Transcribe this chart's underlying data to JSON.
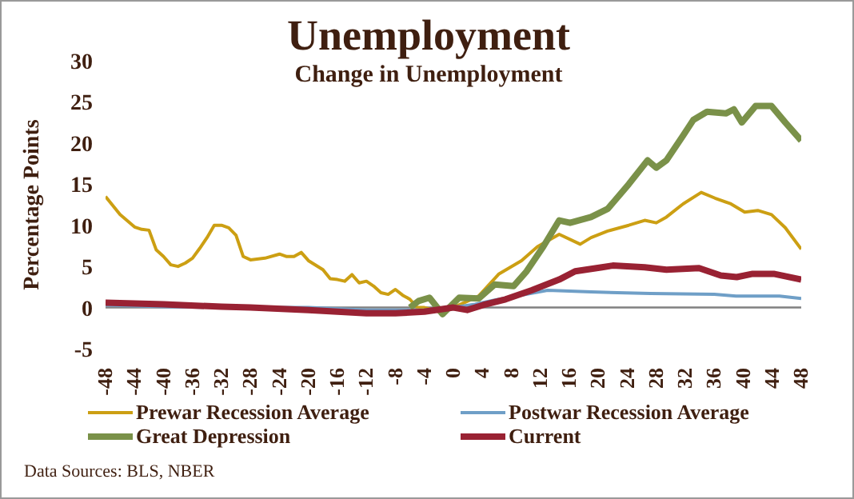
{
  "chart_data": {
    "type": "line",
    "title": "Unemployment",
    "subtitle": "Change in Unemployment",
    "ylabel": "Percentage Points",
    "xlim": [
      -48,
      48
    ],
    "xticks": [
      -48,
      -44,
      -40,
      -36,
      -32,
      -28,
      -24,
      -20,
      -16,
      -12,
      -8,
      -4,
      0,
      4,
      8,
      12,
      16,
      20,
      24,
      28,
      32,
      36,
      40,
      44,
      48
    ],
    "ylim": [
      -5,
      30
    ],
    "yticks": [
      -5,
      0,
      5,
      10,
      15,
      20,
      25,
      30
    ],
    "grid": false,
    "legend": "bottom",
    "marker": "none",
    "line_style": "solid",
    "ref_lines": [
      {
        "axis": "y",
        "value": 0,
        "color": "#808080"
      }
    ],
    "annotations": [
      "Data Sources: BLS, NBER"
    ],
    "series": [
      {
        "name": "Prewar Recession Average",
        "color": "#cc9f13",
        "x": [
          -48,
          -46,
          -44,
          -43,
          -42,
          -41,
          -40,
          -39,
          -38,
          -37,
          -36,
          -35,
          -34,
          -33,
          -32,
          -31,
          -30,
          -29,
          -28,
          -26,
          -24,
          -23,
          -22,
          -21,
          -20,
          -18,
          -17,
          -16,
          -15,
          -14,
          -13,
          -12,
          -11,
          -10,
          -9,
          -8,
          -7,
          -6,
          -5,
          -4,
          -2,
          0,
          2,
          3.5,
          6.3,
          9.4,
          11.6,
          14.6,
          17.5,
          19,
          21.3,
          24.2,
          26.4,
          28,
          29.4,
          31.7,
          34.2,
          36.1,
          38.3,
          40.2,
          42,
          43.9,
          45.8,
          48
        ],
        "values": [
          13.5,
          11.3,
          9.8,
          9.5,
          9.4,
          7,
          6.2,
          5.2,
          5,
          5.4,
          6,
          7.2,
          8.5,
          10,
          10,
          9.7,
          8.8,
          6.2,
          5.8,
          6,
          6.5,
          6.2,
          6.2,
          6.7,
          5.7,
          4.6,
          3.5,
          3.4,
          3.2,
          4,
          3,
          3.2,
          2.6,
          1.8,
          1.6,
          2.2,
          1.5,
          1,
          0,
          0,
          -0.5,
          0,
          0.8,
          1.4,
          4.1,
          5.7,
          7.4,
          8.9,
          7.7,
          8.5,
          9.3,
          10,
          10.6,
          10.3,
          11,
          12.6,
          14,
          13.3,
          12.6,
          11.6,
          11.8,
          11.3,
          9.7,
          7.1
        ]
      },
      {
        "name": "Postwar Recession Average",
        "color": "#6f9fc7",
        "x": [
          -48,
          -40,
          -30,
          -20,
          -12,
          -8,
          -4,
          0,
          3,
          5.7,
          13,
          19,
          27.2,
          36,
          39,
          45,
          48
        ],
        "values": [
          0.3,
          0.1,
          0,
          0,
          -0.3,
          -0.3,
          -0.3,
          0,
          0.4,
          0.9,
          2.1,
          1.9,
          1.7,
          1.6,
          1.4,
          1.4,
          1.1
        ]
      },
      {
        "name": "Great Depression",
        "color": "#7a9149",
        "x": [
          -6,
          -4.8,
          -3.3,
          -1.5,
          0.8,
          3.5,
          5.7,
          8.3,
          10.1,
          12.4,
          14.6,
          16.1,
          19,
          21.3,
          24.2,
          26.8,
          28,
          29.4,
          31.7,
          33.1,
          35,
          37.6,
          38.7,
          39.8,
          41.7,
          43.9,
          45.8,
          48
        ],
        "values": [
          0,
          0.8,
          1.2,
          -0.8,
          1.2,
          1.1,
          2.8,
          2.6,
          4.4,
          7.4,
          10.6,
          10.3,
          11,
          12,
          15,
          17.9,
          17,
          17.9,
          20.9,
          22.8,
          23.8,
          23.6,
          24.1,
          22.5,
          24.5,
          24.5,
          22.5,
          20.3
        ]
      },
      {
        "name": "Current",
        "color": "#992233",
        "x": [
          -48,
          -40,
          -32,
          -28,
          -20,
          -12,
          -8,
          -4,
          0,
          1.9,
          4.1,
          7.2,
          10.8,
          14.6,
          16.8,
          20.5,
          22,
          26.4,
          29.4,
          33.9,
          36.9,
          39.1,
          41.3,
          44.2,
          48
        ],
        "values": [
          0.6,
          0.4,
          0.1,
          0,
          -0.3,
          -0.7,
          -0.7,
          -0.5,
          0,
          -0.3,
          0.3,
          1,
          2.1,
          3.4,
          4.4,
          4.9,
          5.1,
          4.9,
          4.6,
          4.8,
          3.9,
          3.7,
          4.1,
          4.1,
          3.4
        ]
      }
    ]
  }
}
